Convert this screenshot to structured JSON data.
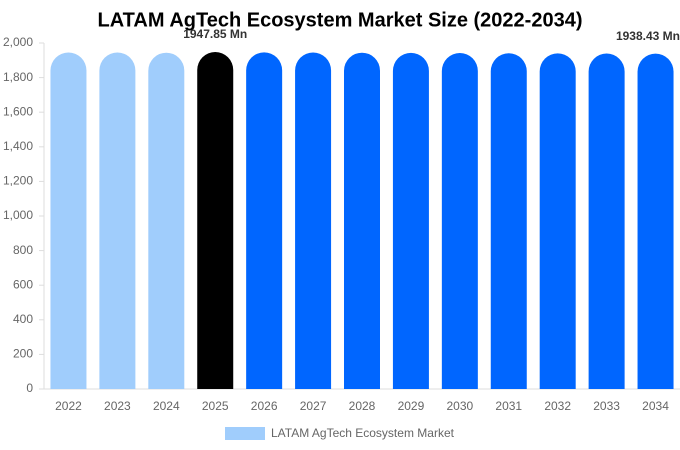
{
  "chart_data": {
    "type": "bar",
    "title": "LATAM AgTech Ecosystem Market Size (2022-2034)",
    "categories": [
      "2022",
      "2023",
      "2024",
      "2025",
      "2026",
      "2027",
      "2028",
      "2029",
      "2030",
      "2031",
      "2032",
      "2033",
      "2034"
    ],
    "series": [
      {
        "name": "LATAM AgTech Ecosystem Market",
        "color": "#a0cdfc",
        "values": [
          1945,
          1945,
          1944,
          1947.85,
          1946,
          1945,
          1944,
          1943,
          1942,
          1941,
          1940,
          1939,
          1938.43
        ],
        "value_labels": [
          null,
          null,
          null,
          "1947.85 Mn",
          null,
          null,
          null,
          null,
          null,
          null,
          null,
          null,
          "1938.43 Mn"
        ],
        "colors": [
          "#a0cdfc",
          "#a0cdfc",
          "#a0cdfc",
          "#000000",
          "#0066ff",
          "#0066ff",
          "#0066ff",
          "#0066ff",
          "#0066ff",
          "#0066ff",
          "#0066ff",
          "#0066ff",
          "#0066ff"
        ]
      }
    ],
    "ylim": [
      0,
      2000
    ],
    "yticks": [
      0,
      200,
      400,
      600,
      800,
      {
        "value": 1000,
        "label": "1,000"
      },
      {
        "value": 1200,
        "label": "1,200"
      },
      {
        "value": 1400,
        "label": "1,400"
      },
      {
        "value": 1600,
        "label": "1,600"
      },
      {
        "value": 1800,
        "label": "1,800"
      },
      {
        "value": 2000,
        "label": "2,000"
      }
    ],
    "grid": false
  }
}
